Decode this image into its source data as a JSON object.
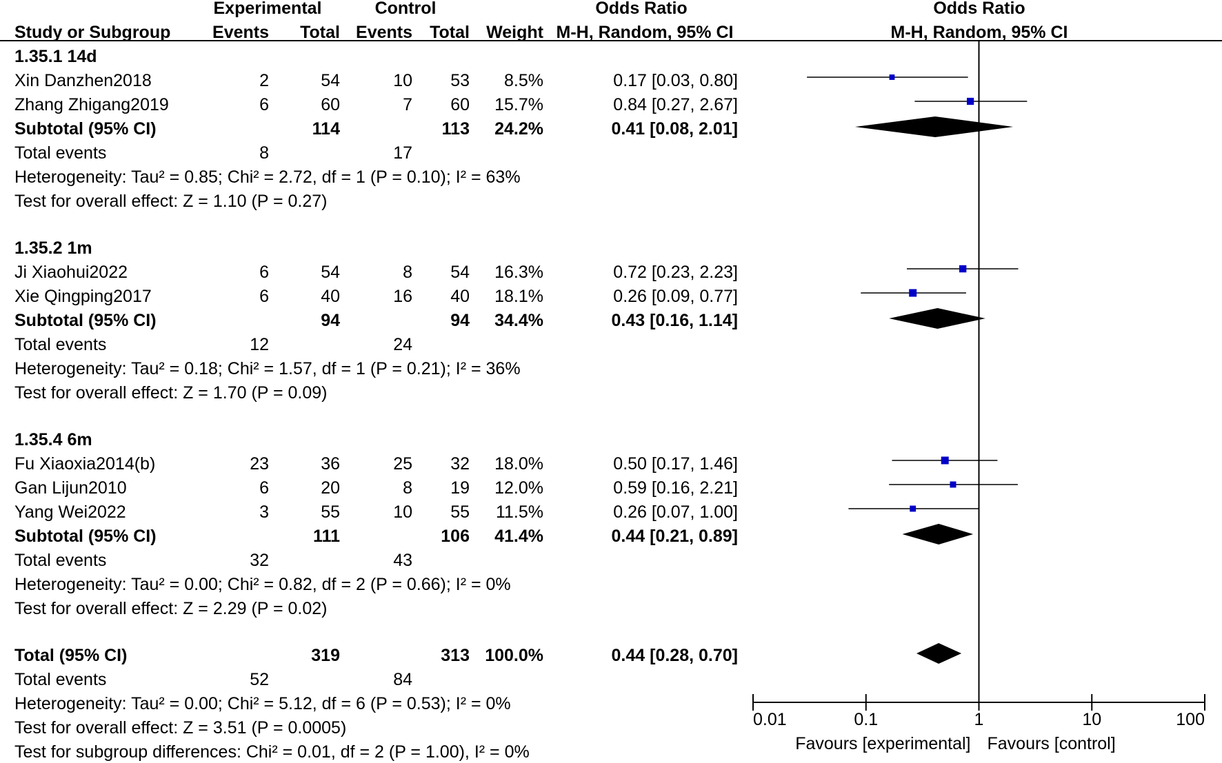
{
  "header": {
    "experimental": "Experimental",
    "control": "Control",
    "odds_ratio_left": "Odds Ratio",
    "odds_ratio_right": "Odds Ratio",
    "col_study": "Study or Subgroup",
    "col_exp_events": "Events",
    "col_exp_total": "Total",
    "col_ctl_events": "Events",
    "col_ctl_total": "Total",
    "col_weight": "Weight",
    "col_method_left": "M-H, Random, 95% CI",
    "col_method_right": "M-H, Random, 95% CI"
  },
  "chart_data": {
    "type": "forest",
    "scale": "log",
    "xlim": [
      0.01,
      100
    ],
    "ticks": [
      "0.01",
      "0.1",
      "1",
      "10",
      "100"
    ],
    "xlabel_left": "Favours [experimental]",
    "xlabel_right": "Favours [control]",
    "subgroups": [
      {
        "title": "1.35.1 14d",
        "studies": [
          {
            "name": "Xin Danzhen2018",
            "e_events": "2",
            "e_total": "54",
            "c_events": "10",
            "c_total": "53",
            "weight": "8.5%",
            "ci_text": "0.17 [0.03, 0.80]",
            "or": 0.17,
            "lo": 0.03,
            "hi": 0.8
          },
          {
            "name": "Zhang Zhigang2019",
            "e_events": "6",
            "e_total": "60",
            "c_events": "7",
            "c_total": "60",
            "weight": "15.7%",
            "ci_text": "0.84 [0.27, 2.67]",
            "or": 0.84,
            "lo": 0.27,
            "hi": 2.67
          }
        ],
        "subtotal": {
          "label": "Subtotal (95% CI)",
          "e_total": "114",
          "c_total": "113",
          "weight": "24.2%",
          "ci_text": "0.41 [0.08, 2.01]",
          "or": 0.41,
          "lo": 0.08,
          "hi": 2.01
        },
        "total_events": {
          "label": "Total events",
          "e": "8",
          "c": "17"
        },
        "heterogeneity": "Heterogeneity: Tau² = 0.85; Chi² = 2.72, df = 1 (P = 0.10); I² = 63%",
        "overall": "Test for overall effect: Z = 1.10 (P = 0.27)"
      },
      {
        "title": "1.35.2 1m",
        "studies": [
          {
            "name": "Ji Xiaohui2022",
            "e_events": "6",
            "e_total": "54",
            "c_events": "8",
            "c_total": "54",
            "weight": "16.3%",
            "ci_text": "0.72 [0.23, 2.23]",
            "or": 0.72,
            "lo": 0.23,
            "hi": 2.23
          },
          {
            "name": "Xie Qingping2017",
            "e_events": "6",
            "e_total": "40",
            "c_events": "16",
            "c_total": "40",
            "weight": "18.1%",
            "ci_text": "0.26 [0.09, 0.77]",
            "or": 0.26,
            "lo": 0.09,
            "hi": 0.77
          }
        ],
        "subtotal": {
          "label": "Subtotal (95% CI)",
          "e_total": "94",
          "c_total": "94",
          "weight": "34.4%",
          "ci_text": "0.43 [0.16, 1.14]",
          "or": 0.43,
          "lo": 0.16,
          "hi": 1.14
        },
        "total_events": {
          "label": "Total events",
          "e": "12",
          "c": "24"
        },
        "heterogeneity": "Heterogeneity: Tau² = 0.18; Chi² = 1.57, df = 1 (P = 0.21); I² = 36%",
        "overall": "Test for overall effect: Z = 1.70 (P = 0.09)"
      },
      {
        "title": "1.35.4 6m",
        "studies": [
          {
            "name": "Fu Xiaoxia2014(b)",
            "e_events": "23",
            "e_total": "36",
            "c_events": "25",
            "c_total": "32",
            "weight": "18.0%",
            "ci_text": "0.50 [0.17, 1.46]",
            "or": 0.5,
            "lo": 0.17,
            "hi": 1.46
          },
          {
            "name": "Gan Lijun2010",
            "e_events": "6",
            "e_total": "20",
            "c_events": "8",
            "c_total": "19",
            "weight": "12.0%",
            "ci_text": "0.59 [0.16, 2.21]",
            "or": 0.59,
            "lo": 0.16,
            "hi": 2.21
          },
          {
            "name": "Yang Wei2022",
            "e_events": "3",
            "e_total": "55",
            "c_events": "10",
            "c_total": "55",
            "weight": "11.5%",
            "ci_text": "0.26 [0.07, 1.00]",
            "or": 0.26,
            "lo": 0.07,
            "hi": 1.0
          }
        ],
        "subtotal": {
          "label": "Subtotal (95% CI)",
          "e_total": "111",
          "c_total": "106",
          "weight": "41.4%",
          "ci_text": "0.44 [0.21, 0.89]",
          "or": 0.44,
          "lo": 0.21,
          "hi": 0.89
        },
        "total_events": {
          "label": "Total events",
          "e": "32",
          "c": "43"
        },
        "heterogeneity": "Heterogeneity: Tau² = 0.00; Chi² = 0.82, df = 2 (P = 0.66); I² = 0%",
        "overall": "Test for overall effect: Z = 2.29 (P = 0.02)"
      }
    ],
    "total": {
      "label": "Total (95% CI)",
      "e_total": "319",
      "c_total": "313",
      "weight": "100.0%",
      "ci_text": "0.44 [0.28, 0.70]",
      "or": 0.44,
      "lo": 0.28,
      "hi": 0.7
    },
    "total_events": {
      "label": "Total events",
      "e": "52",
      "c": "84"
    },
    "heterogeneity": "Heterogeneity: Tau² = 0.00; Chi² = 5.12, df = 6 (P = 0.53); I² = 0%",
    "overall": "Test for overall effect: Z = 3.51 (P = 0.0005)",
    "subgroup_diff": "Test for subgroup differences: Chi² = 0.01, df = 2 (P = 1.00), I² = 0%"
  },
  "colors": {
    "marker": "#0000c8",
    "diamond": "#000000",
    "line": "#000000"
  }
}
